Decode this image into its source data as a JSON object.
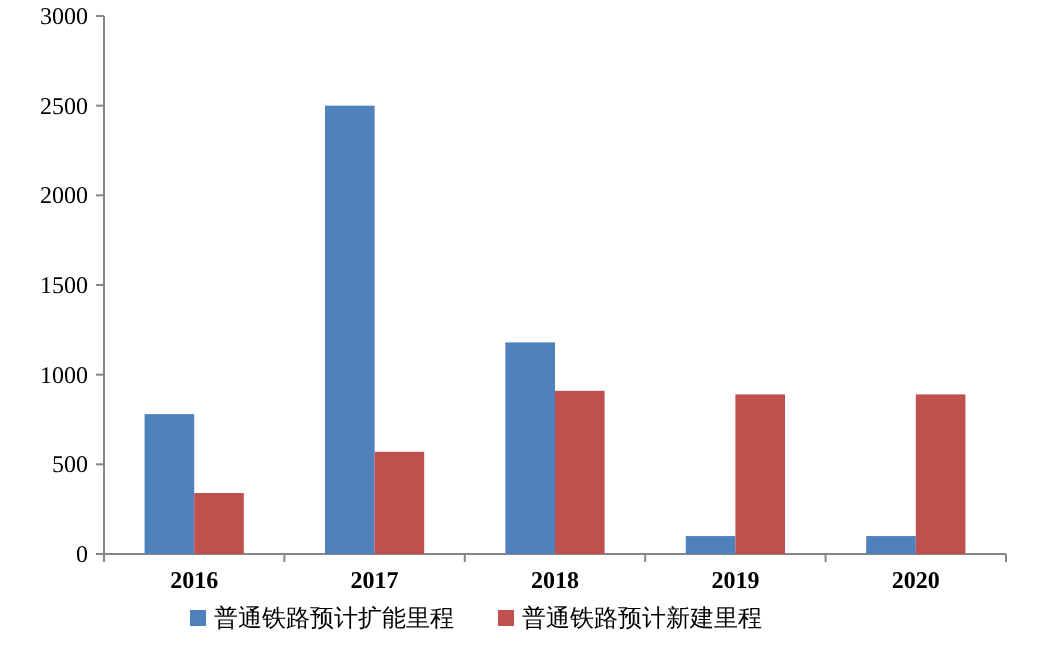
{
  "chart_data": {
    "type": "bar",
    "categories": [
      "2016",
      "2017",
      "2018",
      "2019",
      "2020"
    ],
    "series": [
      {
        "name": "普通铁路预计扩能里程",
        "color": "#4f81bd",
        "values": [
          780,
          2500,
          1180,
          100,
          100
        ]
      },
      {
        "name": "普通铁路预计新建里程",
        "color": "#c0504d",
        "values": [
          340,
          570,
          910,
          890,
          890
        ]
      }
    ],
    "ylim": [
      0,
      3000
    ],
    "yticks": [
      0,
      500,
      1000,
      1500,
      2000,
      2500,
      3000
    ],
    "grid": false,
    "legend": "bottom"
  }
}
